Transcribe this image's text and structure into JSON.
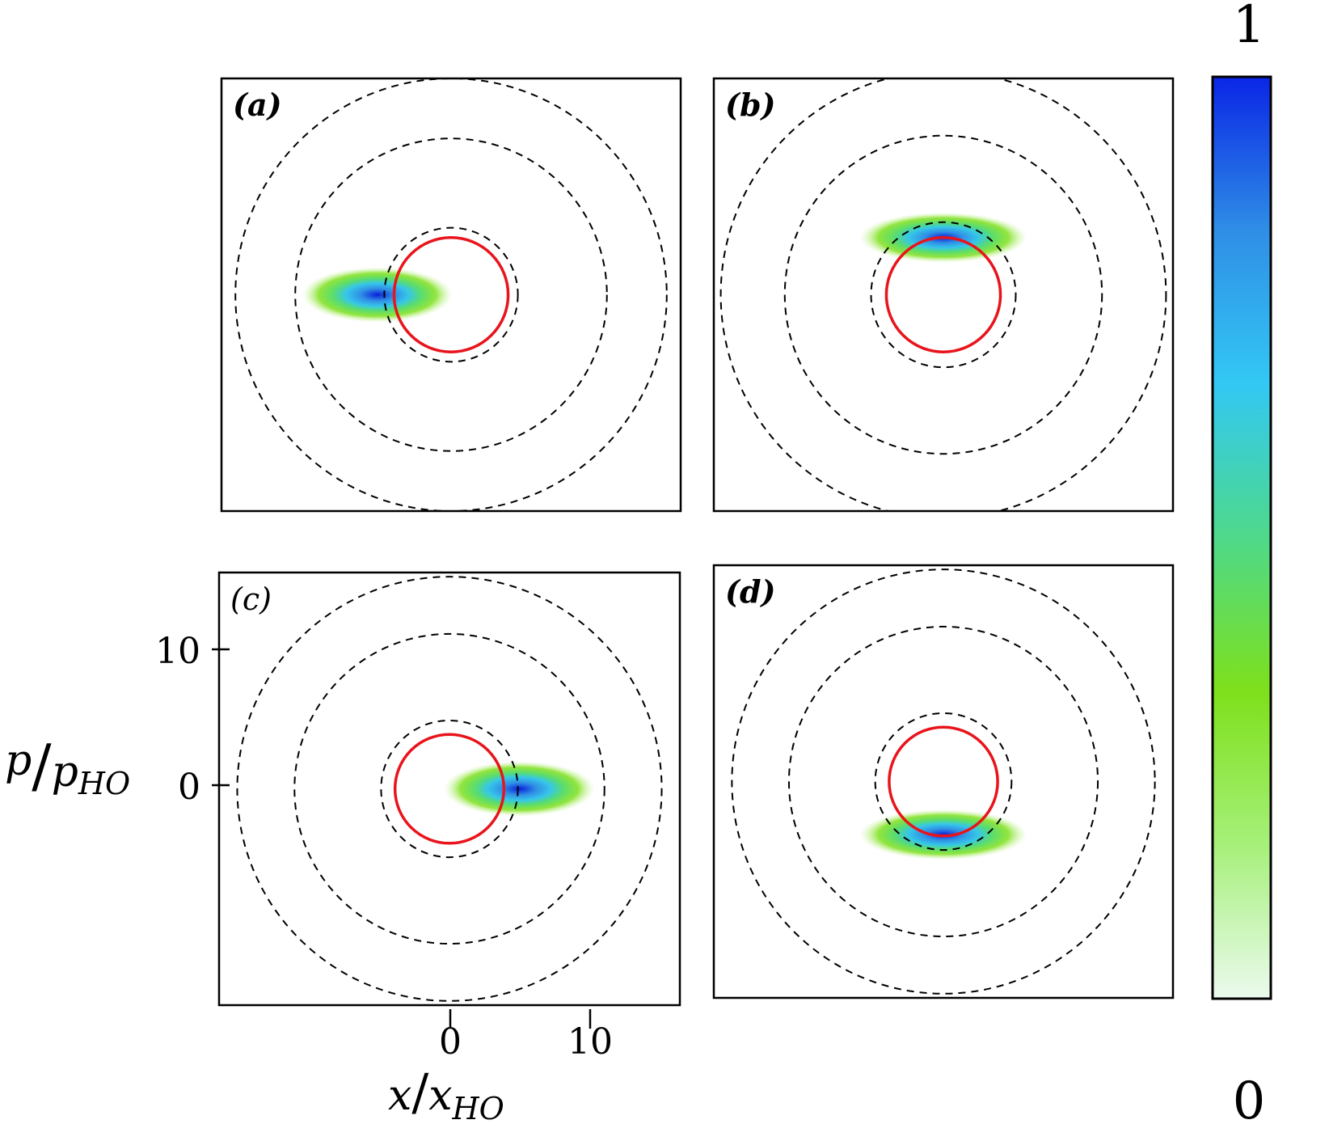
{
  "chart_data": {
    "type": "heatmap",
    "description_kind": "phase-space density panels",
    "xlabel": "x/x_HO",
    "ylabel": "p/p_HO",
    "xlabel_parts": {
      "var": "x",
      "sub": "HO"
    },
    "ylabel_parts": {
      "var": "p",
      "sub": "HO"
    },
    "x_ticks": [
      0,
      10
    ],
    "y_ticks": [
      0,
      10
    ],
    "xlim": [
      -16.5,
      16.5
    ],
    "ylim": [
      -15.5,
      15.5
    ],
    "colorbar": {
      "min_label": "0",
      "max_label": "1",
      "colors": [
        "#ebfaee",
        "#a6f07a",
        "#7ee01b",
        "#4ed98a",
        "#33c8f4",
        "#2f8ee6",
        "#0a26e6"
      ]
    },
    "colors": {
      "red_circle": "#e8141c",
      "dashed": "#000000"
    },
    "panels": [
      {
        "label": "(a)",
        "bold": true,
        "center": [
          0,
          0
        ],
        "red_circle_radius": 4.1,
        "dashed_radii": [
          4.8,
          11.2,
          15.5
        ],
        "blob": {
          "x": -5.3,
          "p": 0.0,
          "sx": 1.8,
          "sp": 0.55
        }
      },
      {
        "label": "(b)",
        "bold": true,
        "center": [
          0,
          0
        ],
        "red_circle_radius": 4.1,
        "dashed_radii": [
          5.2,
          11.4,
          16.0
        ],
        "blob": {
          "x": 0.0,
          "p": 4.1,
          "sx": 2.0,
          "sp": 0.5
        }
      },
      {
        "label": "(c)",
        "bold": false,
        "center": [
          0,
          0
        ],
        "red_circle_radius": 3.9,
        "dashed_radii": [
          4.9,
          11.1,
          15.2
        ],
        "blob": {
          "x": 5.0,
          "p": 0.0,
          "sx": 1.8,
          "sp": 0.55
        }
      },
      {
        "label": "(d)",
        "bold": true,
        "center": [
          0,
          0
        ],
        "red_circle_radius": 3.9,
        "dashed_radii": [
          4.9,
          11.1,
          15.2
        ],
        "blob": {
          "x": 0.0,
          "p": -3.8,
          "sx": 2.0,
          "sp": 0.5
        }
      }
    ]
  }
}
